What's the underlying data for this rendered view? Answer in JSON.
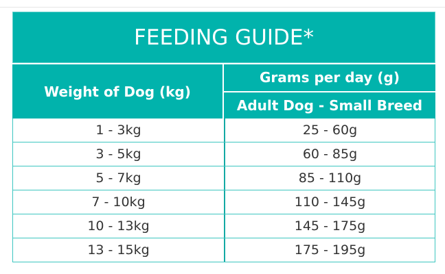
{
  "title": "FEEDING GUIDE*",
  "headers": {
    "weight": "Weight of Dog (kg)",
    "grams": "Grams per day (g)",
    "sub": "Adult Dog - Small Breed"
  },
  "rows": [
    {
      "weight": "1 - 3kg",
      "grams": "25 - 60g"
    },
    {
      "weight": "3 - 5kg",
      "grams": "60 - 85g"
    },
    {
      "weight": "5 - 7kg",
      "grams": "85 - 110g"
    },
    {
      "weight": "7 - 10kg",
      "grams": "110 - 145g"
    },
    {
      "weight": "10 - 13kg",
      "grams": "145 - 175g"
    },
    {
      "weight": "13 - 15kg",
      "grams": "175 - 195g"
    }
  ],
  "colors": {
    "accent": "#01b3ac",
    "border": "#3cc6c0"
  }
}
